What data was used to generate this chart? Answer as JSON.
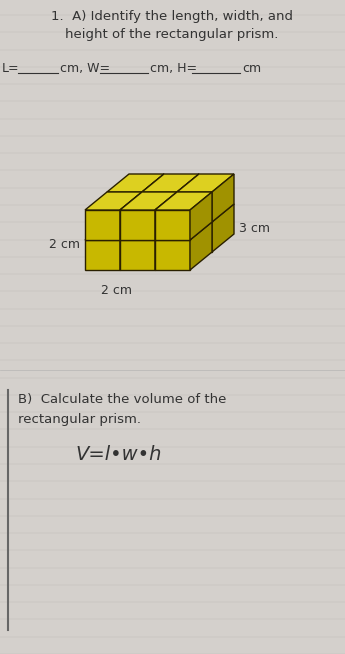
{
  "title_line1": "1.  A) Identify the length, width, and",
  "title_line2": "height of the rectangular prism.",
  "fill_line_parts": [
    "L=",
    "_____",
    "cm, W=",
    "_______",
    "cm, H=",
    "______",
    "cm"
  ],
  "label_left": "2 cm",
  "label_right": "3 cm",
  "label_bottom": "2 cm",
  "section_b_line1": "B)  Calculate the volume of the",
  "section_b_line2": "rectangular prism.",
  "formula": "V=l•w•h",
  "paper_color": "#d4d0cc",
  "prism_face_color": "#c8b800",
  "prism_top_color": "#ddd020",
  "prism_side_color": "#a09200",
  "prism_line_color": "#2a2000",
  "cols": 3,
  "rows": 2,
  "depth": 2
}
